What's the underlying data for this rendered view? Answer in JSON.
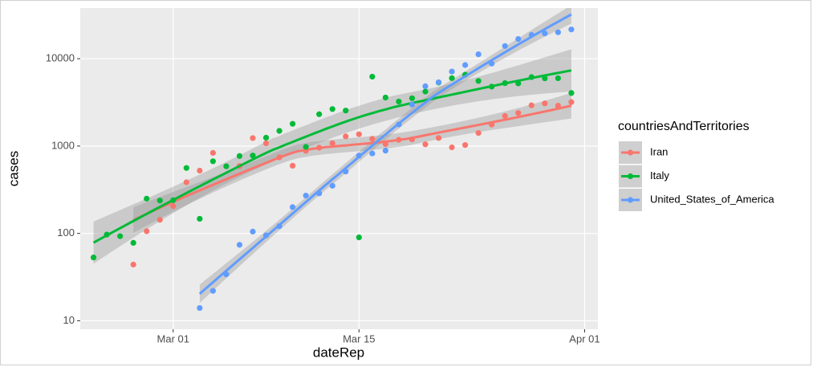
{
  "chart_data": {
    "type": "scatter-smooth",
    "x_label": "dateRep",
    "y_label": "cases",
    "log_y": true,
    "grid": true,
    "legend_title": "countriesAndTerritories",
    "legend_position": "right",
    "xlim": [
      "02-23",
      "04-02"
    ],
    "xticks": [
      {
        "value": "03-01",
        "label": "Mar 01"
      },
      {
        "value": "03-15",
        "label": "Mar 15"
      },
      {
        "value": "04-01",
        "label": "Apr 01"
      }
    ],
    "ylim": [
      8,
      38000
    ],
    "yticks": [
      10,
      100,
      1000,
      10000
    ],
    "series": [
      {
        "name": "Iran",
        "color": "#F8766D",
        "x": [
          "02-27",
          "02-28",
          "02-29",
          "03-01",
          "03-02",
          "03-03",
          "03-04",
          "03-05",
          "03-06",
          "03-07",
          "03-08",
          "03-09",
          "03-10",
          "03-11",
          "03-12",
          "03-13",
          "03-14",
          "03-15",
          "03-16",
          "03-17",
          "03-18",
          "03-19",
          "03-20",
          "03-21",
          "03-22",
          "03-23",
          "03-24",
          "03-25",
          "03-26",
          "03-27",
          "03-28",
          "03-29",
          "03-30",
          "03-31"
        ],
        "values": [
          44,
          106,
          143,
          205,
          385,
          523,
          835,
          586,
          591,
          1234,
          1076,
          743,
          595,
          881,
          958,
          1075,
          1289,
          1365,
          1209,
          1053,
          1178,
          1192,
          1046,
          1237,
          966,
          1028,
          1411,
          1762,
          2206,
          2389,
          2926,
          3076,
          2901,
          3186
        ]
      },
      {
        "name": "Italy",
        "color": "#00BA38",
        "x": [
          "02-24",
          "02-25",
          "02-26",
          "02-27",
          "02-28",
          "02-29",
          "03-01",
          "03-02",
          "03-03",
          "03-04",
          "03-05",
          "03-06",
          "03-07",
          "03-08",
          "03-09",
          "03-10",
          "03-11",
          "03-12",
          "03-13",
          "03-14",
          "03-15",
          "03-16",
          "03-17",
          "03-18",
          "03-19",
          "03-20",
          "03-21",
          "03-22",
          "03-23",
          "03-24",
          "03-25",
          "03-26",
          "03-27",
          "03-28",
          "03-29",
          "03-30",
          "03-31"
        ],
        "values": [
          53,
          97,
          93,
          78,
          250,
          238,
          240,
          561,
          147,
          670,
          587,
          769,
          778,
          1247,
          1492,
          1797,
          977,
          2313,
          2651,
          2547,
          90,
          6230,
          3590,
          3233,
          3526,
          4207,
          5322,
          5986,
          6557,
          5560,
          4789,
          5249,
          5210,
          6153,
          5959,
          5974,
          4050
        ]
      },
      {
        "name": "United_States_of_America",
        "color": "#619CFF",
        "x": [
          "03-03",
          "03-04",
          "03-05",
          "03-06",
          "03-07",
          "03-08",
          "03-09",
          "03-10",
          "03-11",
          "03-12",
          "03-13",
          "03-14",
          "03-15",
          "03-16",
          "03-17",
          "03-18",
          "03-19",
          "03-20",
          "03-21",
          "03-22",
          "03-23",
          "03-24",
          "03-25",
          "03-26",
          "03-27",
          "03-28",
          "03-29",
          "03-30",
          "03-31"
        ],
        "values": [
          14,
          22,
          34,
          74,
          105,
          95,
          121,
          200,
          271,
          287,
          351,
          511,
          777,
          823,
          887,
          1766,
          2988,
          4835,
          5374,
          7123,
          8459,
          11236,
          8789,
          13963,
          16797,
          18695,
          19452,
          20065,
          21595
        ]
      }
    ]
  }
}
